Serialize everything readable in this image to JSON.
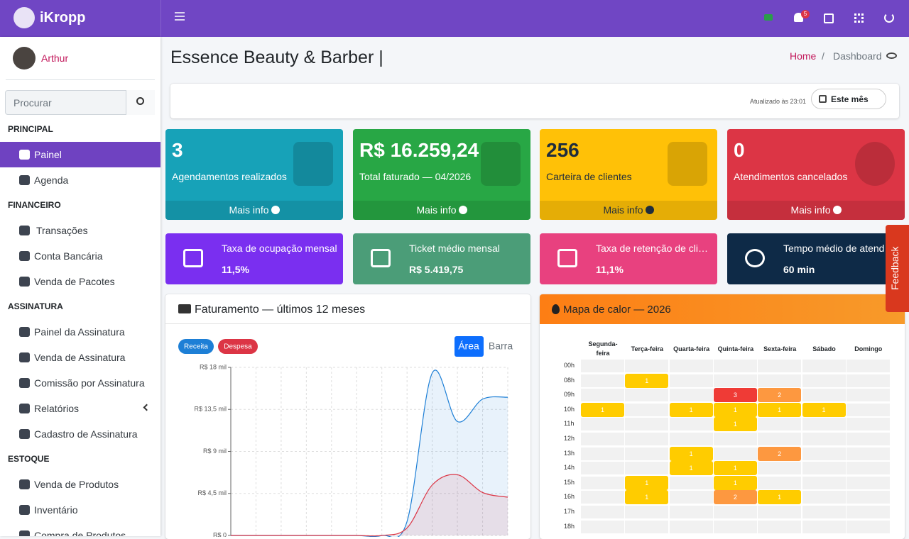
{
  "sidebar": {
    "brand": "iKropp",
    "user": "Arthur",
    "search": "Procurar",
    "sections": [
      {
        "title": "PRINCIPAL",
        "items": [
          "Painel",
          "Agenda"
        ]
      },
      {
        "title": "FINANCEIRO",
        "items": [
          "Transações",
          "Conta Bancária",
          "Venda de Pacotes"
        ]
      },
      {
        "title": "ASSINATURA",
        "items": [
          "Painel da Assinatura",
          "Venda de Assinatura",
          "Comissão por Assinatura",
          "Relatórios",
          "Cadastro de Assinatura"
        ]
      },
      {
        "title": "ESTOQUE",
        "items": [
          "Venda de Produtos",
          "Inventário",
          "Compra de Produtos"
        ]
      }
    ]
  },
  "header": {
    "notifications": "5",
    "page_title": "Essence Beauty & Barber |",
    "breadcrumb": [
      "Home",
      "Dashboard"
    ],
    "updated": "Atualizado às 23:01",
    "period": "Este mês"
  },
  "stats": [
    {
      "value": "3",
      "label": "Agendamentos realizados",
      "link": "Mais info",
      "color": "#17a2b8"
    },
    {
      "value": "R$ 16.259,24",
      "label": "Total faturado — 04/2026",
      "link": "Mais info",
      "color": "#28a745"
    },
    {
      "value": "256",
      "label": "Carteira de clientes",
      "link": "Mais info",
      "color": "#ffc107"
    },
    {
      "value": "0",
      "label": "Atendimentos cancelados",
      "link": "Mais info",
      "color": "#dc3545"
    }
  ],
  "kpis": [
    {
      "label": "Taxa de ocupação mensal",
      "value": "11,5%",
      "color": "#7a2ff0"
    },
    {
      "label": "Ticket médio mensal",
      "value": "R$ 5.419,75",
      "color": "#4b9d78"
    },
    {
      "label": "Taxa de retenção de cli…",
      "value": "11,1%",
      "color": "#e8417f"
    },
    {
      "label": "Tempo médio de atend…",
      "value": "60 min",
      "color": "#0e2a47"
    }
  ],
  "feedback": "Feedback",
  "chart_data": [
    {
      "type": "line",
      "title": "Faturamento — últimos 12 meses",
      "modes": [
        "Área",
        "Barra"
      ],
      "categories": [
        null,
        null,
        null,
        null,
        null,
        null,
        null,
        null,
        null,
        null,
        null,
        null
      ],
      "series": [
        {
          "name": "Receita",
          "color": "#1d7fd6",
          "values": [
            0,
            0,
            0,
            0,
            0,
            0,
            0,
            1500,
            17400,
            12200,
            14600,
            14800
          ]
        },
        {
          "name": "Despesa",
          "color": "#dc3545",
          "values": [
            0,
            0,
            0,
            0,
            0,
            0,
            0,
            800,
            5400,
            6500,
            4600,
            4100
          ]
        }
      ],
      "ylim": [
        0,
        18000
      ],
      "yticks": [
        {
          "value": 0,
          "label": "R$ 0"
        },
        {
          "value": 4500,
          "label": "R$ 4,5 mil"
        },
        {
          "value": 9000,
          "label": "R$ 9 mil"
        },
        {
          "value": 13500,
          "label": "R$ 13,5 mil"
        },
        {
          "value": 18000,
          "label": "R$ 18 mil"
        }
      ],
      "grid": true
    },
    {
      "type": "heatmap",
      "title": "Mapa de calor — 2026",
      "categories": [
        "Segunda-feira",
        "Terça-feira",
        "Quarta-feira",
        "Quinta-feira",
        "Sexta-feira",
        "Sábado",
        "Domingo"
      ],
      "y_categories": [
        "00h",
        "08h",
        "09h",
        "10h",
        "11h",
        "12h",
        "13h",
        "14h",
        "15h",
        "16h",
        "17h",
        "18h"
      ],
      "values": [
        [
          null,
          null,
          null,
          null,
          null,
          null,
          null
        ],
        [
          null,
          1,
          null,
          null,
          null,
          null,
          null
        ],
        [
          null,
          null,
          null,
          3,
          2,
          null,
          null
        ],
        [
          1,
          null,
          1,
          1,
          1,
          1,
          null
        ],
        [
          null,
          null,
          null,
          1,
          null,
          null,
          null
        ],
        [
          null,
          null,
          null,
          null,
          null,
          null,
          null
        ],
        [
          null,
          null,
          1,
          null,
          2,
          null,
          null
        ],
        [
          null,
          null,
          1,
          1,
          null,
          null,
          null
        ],
        [
          null,
          1,
          null,
          1,
          null,
          null,
          null
        ],
        [
          null,
          1,
          null,
          2,
          1,
          null,
          null
        ],
        [
          null,
          null,
          null,
          null,
          null,
          null,
          null
        ],
        [
          null,
          null,
          null,
          null,
          null,
          null,
          null
        ]
      ],
      "colors": [
        "#ffcc00",
        "#fd9840",
        "#ef3b36"
      ]
    }
  ]
}
